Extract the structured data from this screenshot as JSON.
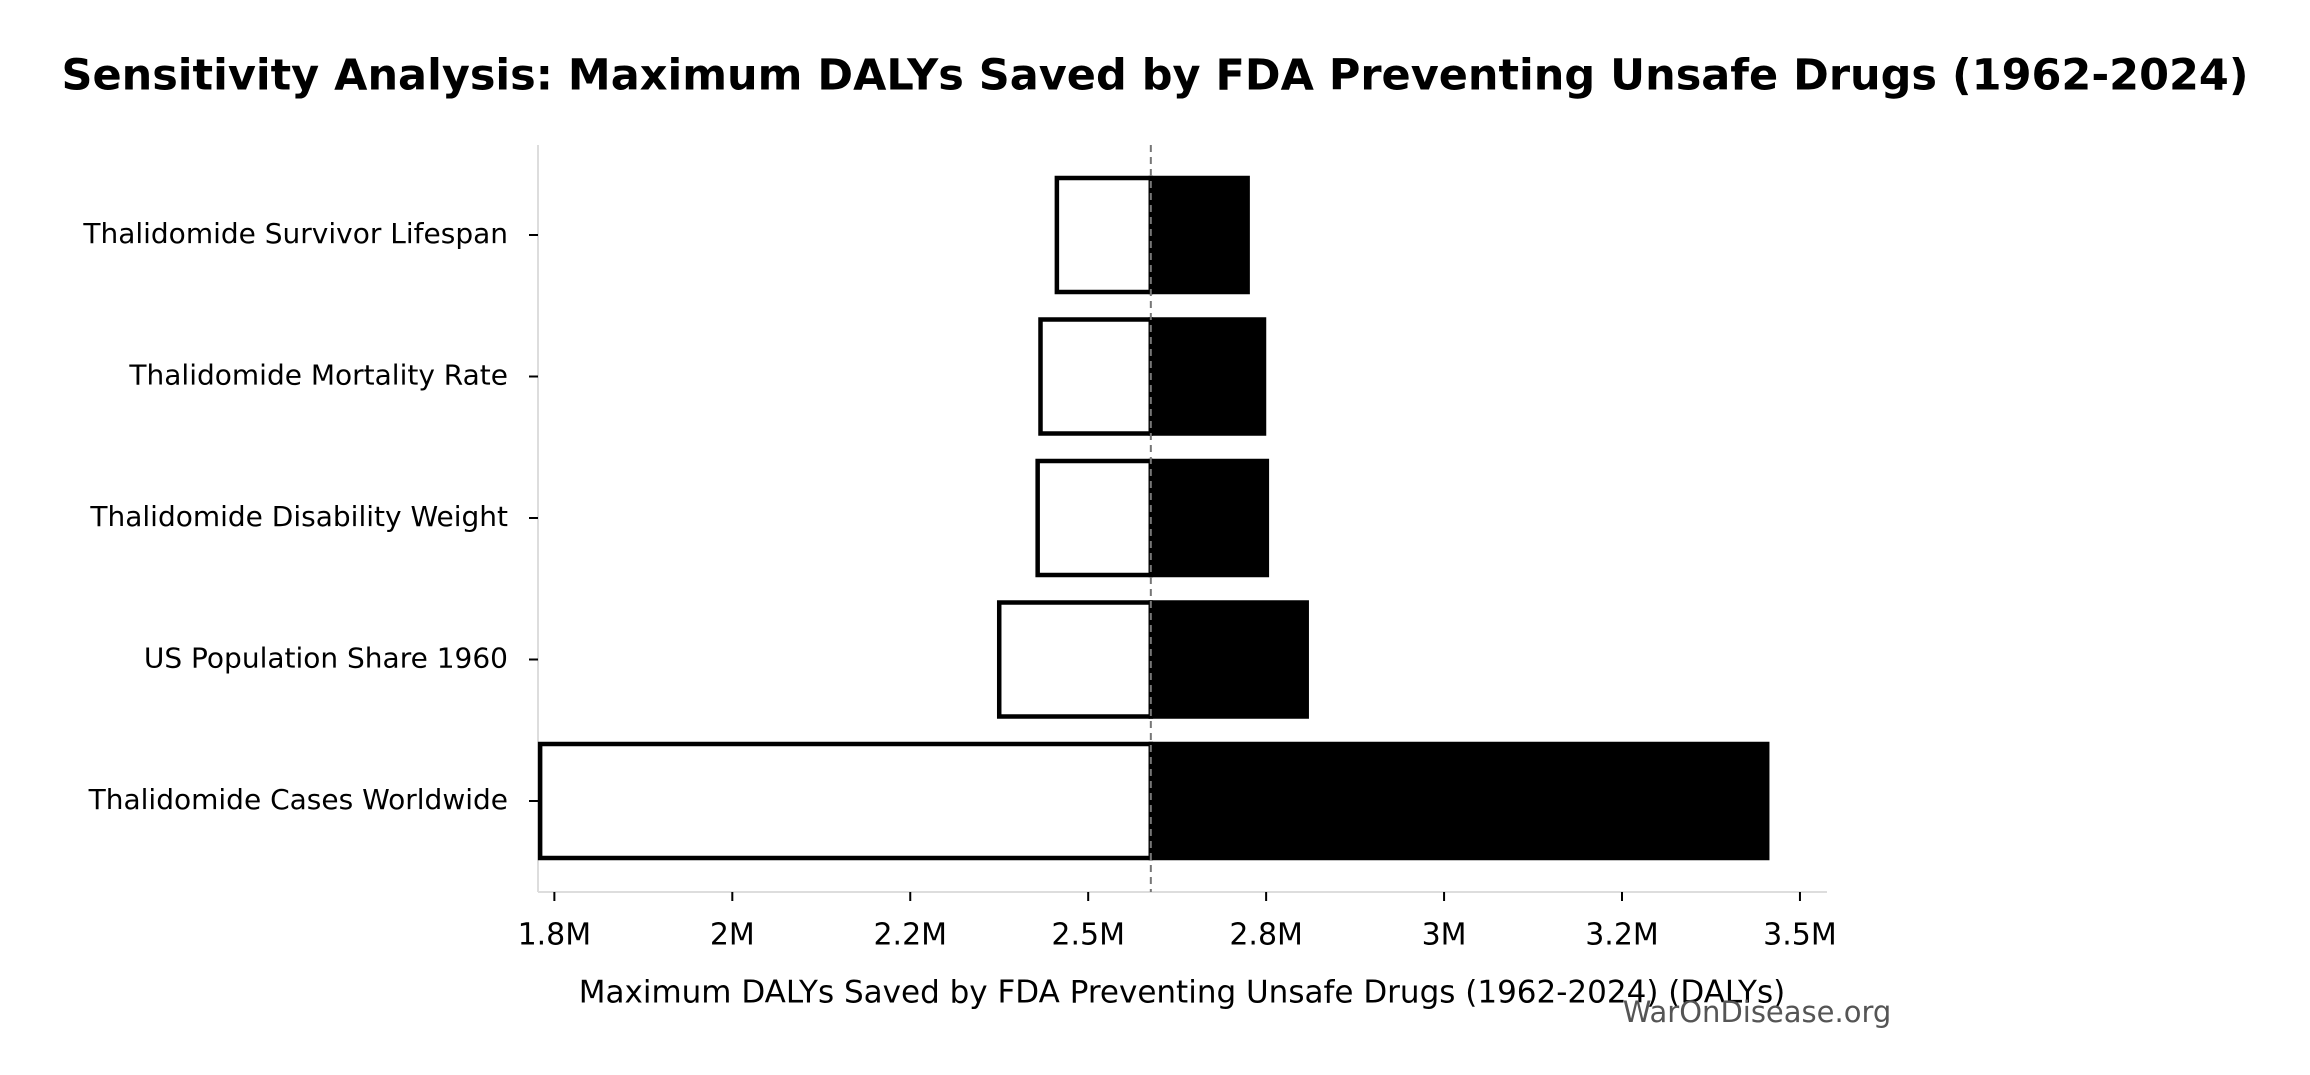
{
  "chart_data": {
    "type": "tornado",
    "title": "Sensitivity Analysis: Maximum DALYs Saved by FDA Preventing Unsafe Drugs (1962-2024)",
    "x_label": "Maximum DALYs Saved by FDA Preventing Unsafe Drugs (1962-2024) (DALYs)",
    "watermark": "WarOnDisease.org",
    "categories": [
      "Thalidomide Survivor Lifespan",
      "Thalidomide Mortality Rate",
      "Thalidomide Disability Weight",
      "US Population Share 1960",
      "Thalidomide Cases Worldwide"
    ],
    "baseline": 2588000,
    "series": [
      {
        "color": "#ffffff",
        "edgecolor": "#000000",
        "values": [
          2456000,
          2433000,
          2429000,
          2375000,
          1730000
        ]
      },
      {
        "color": "#000000",
        "edgecolor": "#000000",
        "values": [
          2724000,
          2747000,
          2751000,
          2807000,
          3454000
        ]
      }
    ],
    "xlim": [
      1727000,
      3538000
    ],
    "xticks": [
      {
        "value": 1750000,
        "label": "1.8M"
      },
      {
        "value": 2000000,
        "label": "2M"
      },
      {
        "value": 2250000,
        "label": "2.2M"
      },
      {
        "value": 2500000,
        "label": "2.5M"
      },
      {
        "value": 2750000,
        "label": "2.8M"
      },
      {
        "value": 3000000,
        "label": "3M"
      },
      {
        "value": 3250000,
        "label": "3.2M"
      },
      {
        "value": 3500000,
        "label": "3.5M"
      }
    ]
  }
}
